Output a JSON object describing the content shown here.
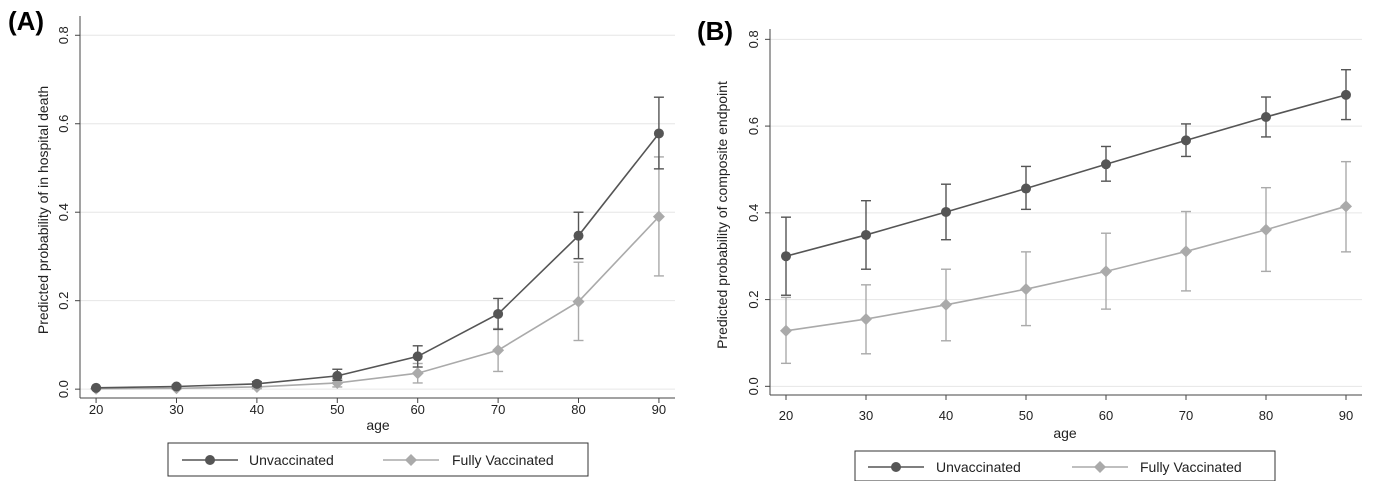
{
  "colors": {
    "unvaccinated": "#555555",
    "fully_vaccinated": "#aaaaaa",
    "grid": "#e6e6e6",
    "axis": "#444444"
  },
  "chart_data": [
    {
      "panel": "(A)",
      "type": "line",
      "xlabel": "age",
      "ylabel": "Predicted probability of in hospital death",
      "x": [
        20,
        30,
        40,
        50,
        60,
        70,
        80,
        90
      ],
      "xticks": [
        "20",
        "30",
        "40",
        "50",
        "60",
        "70",
        "80",
        "90"
      ],
      "yticks": [
        "0.0",
        "0.2",
        "0.4",
        "0.6",
        "0.8"
      ],
      "yticks_values": [
        0.0,
        0.2,
        0.4,
        0.6,
        0.8
      ],
      "xlim": [
        18,
        92
      ],
      "ylim": [
        -0.02,
        0.83
      ],
      "grid": true,
      "legend_position": "bottom",
      "series": [
        {
          "name": "Unvaccinated",
          "marker": "circle",
          "values": [
            0.003,
            0.006,
            0.012,
            0.03,
            0.074,
            0.17,
            0.347,
            0.578
          ],
          "lower": [
            0.002,
            0.003,
            0.007,
            0.02,
            0.05,
            0.135,
            0.295,
            0.498
          ],
          "upper": [
            0.004,
            0.009,
            0.017,
            0.045,
            0.098,
            0.205,
            0.4,
            0.66
          ]
        },
        {
          "name": "Fully Vaccinated",
          "marker": "diamond",
          "values": [
            0.001,
            0.002,
            0.005,
            0.014,
            0.036,
            0.088,
            0.198,
            0.39
          ],
          "lower": [
            0.0,
            0.0,
            0.001,
            0.005,
            0.014,
            0.04,
            0.11,
            0.256
          ],
          "upper": [
            0.003,
            0.005,
            0.01,
            0.024,
            0.058,
            0.137,
            0.287,
            0.525
          ]
        }
      ]
    },
    {
      "panel": "(B)",
      "type": "line",
      "xlabel": "age",
      "ylabel": "Predicted probability of composite endpoint",
      "x": [
        20,
        30,
        40,
        50,
        60,
        70,
        80,
        90
      ],
      "xticks": [
        "20",
        "30",
        "40",
        "50",
        "60",
        "70",
        "80",
        "90"
      ],
      "yticks": [
        "0.0",
        "0.2",
        "0.4",
        "0.6",
        "0.8"
      ],
      "yticks_values": [
        0.0,
        0.2,
        0.4,
        0.6,
        0.8
      ],
      "xlim": [
        18,
        92
      ],
      "ylim": [
        -0.02,
        0.81
      ],
      "grid": true,
      "legend_position": "bottom",
      "series": [
        {
          "name": "Unvaccinated",
          "marker": "circle",
          "values": [
            0.3,
            0.349,
            0.402,
            0.456,
            0.512,
            0.567,
            0.621,
            0.672
          ],
          "lower": [
            0.21,
            0.27,
            0.338,
            0.408,
            0.473,
            0.53,
            0.575,
            0.615
          ],
          "upper": [
            0.39,
            0.428,
            0.466,
            0.507,
            0.553,
            0.605,
            0.667,
            0.73
          ]
        },
        {
          "name": "Fully Vaccinated",
          "marker": "diamond",
          "values": [
            0.128,
            0.155,
            0.188,
            0.224,
            0.265,
            0.311,
            0.361,
            0.415
          ],
          "lower": [
            0.053,
            0.075,
            0.105,
            0.14,
            0.178,
            0.22,
            0.265,
            0.31
          ],
          "upper": [
            0.205,
            0.234,
            0.27,
            0.31,
            0.353,
            0.403,
            0.458,
            0.518
          ]
        }
      ]
    }
  ]
}
